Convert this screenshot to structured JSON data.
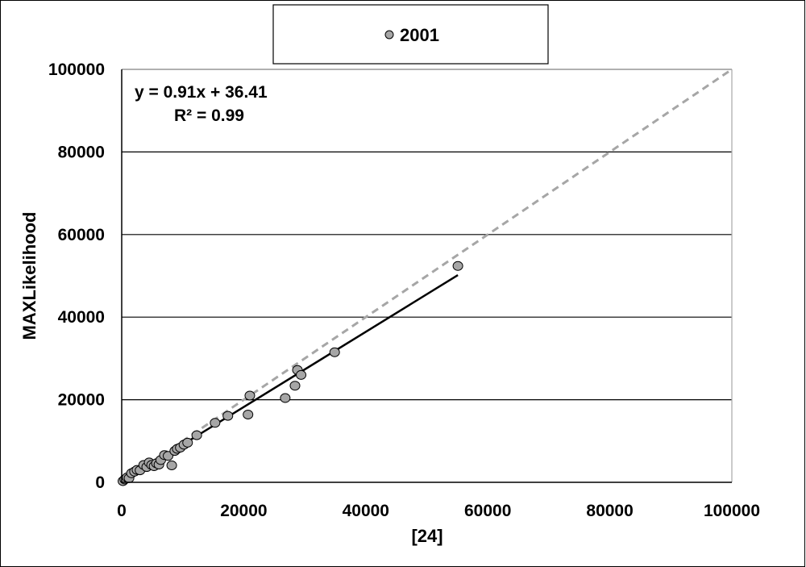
{
  "chart_data": {
    "type": "scatter",
    "title": "",
    "xlabel": "[24]",
    "ylabel": "MAXLikelihood",
    "xlim": [
      0,
      100000
    ],
    "ylim": [
      0,
      100000
    ],
    "x_ticks": [
      "0",
      "20000",
      "40000",
      "60000",
      "80000",
      "100000"
    ],
    "y_ticks": [
      "0",
      "20000",
      "40000",
      "60000",
      "80000",
      "100000"
    ],
    "grid": "horizontal",
    "legend": {
      "position": "top-center",
      "entries": [
        "2001"
      ]
    },
    "series": [
      {
        "name": "2001",
        "color": "#a6a6a6",
        "x": [
          200,
          500,
          900,
          1200,
          1600,
          2100,
          2500,
          3000,
          3600,
          4100,
          4500,
          4900,
          5300,
          5700,
          6100,
          6400,
          7000,
          7600,
          8200,
          8700,
          9100,
          9600,
          10200,
          10800,
          12300,
          15300,
          17400,
          20700,
          21000,
          26800,
          28400,
          28800,
          29400,
          34900,
          55100
        ],
        "y": [
          300,
          700,
          1200,
          1000,
          2200,
          2600,
          3000,
          2900,
          4200,
          3700,
          4800,
          4200,
          3900,
          4600,
          4300,
          5400,
          6600,
          6400,
          4100,
          7600,
          8100,
          8400,
          9100,
          9600,
          11400,
          14400,
          16100,
          16400,
          21000,
          20400,
          23400,
          27200,
          26000,
          31500,
          52400
        ]
      }
    ],
    "trendline": {
      "label": "y = 0.91x + 36.41",
      "r2_label": "R² = 0.99",
      "slope": 0.91,
      "intercept": 36.41,
      "x_range": [
        0,
        55100
      ]
    },
    "reference_line": {
      "style": "dashed",
      "color": "#a6a6a6",
      "from": [
        0,
        0
      ],
      "to": [
        100000,
        100000
      ]
    }
  }
}
